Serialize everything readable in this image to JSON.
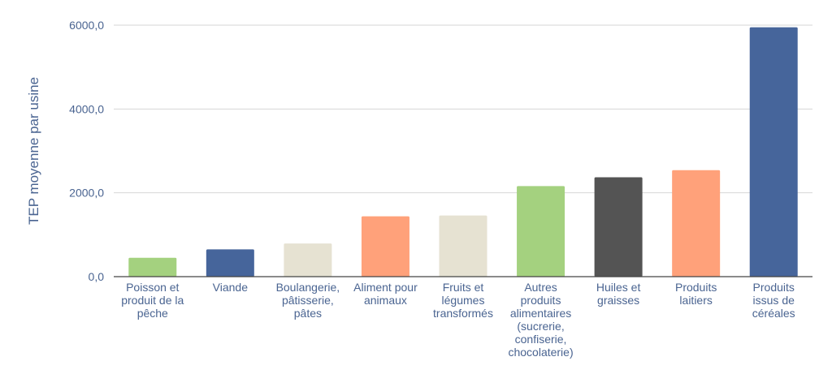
{
  "chart_data": {
    "type": "bar",
    "ylabel": "TEP moyenne par usine",
    "xlabel": "",
    "ylim": [
      0,
      6000
    ],
    "yticks": [
      "0,0",
      "2000,0",
      "4000,0",
      "6000,0"
    ],
    "grid": true,
    "categories": [
      [
        "Poisson et",
        "produit de la",
        "pêche"
      ],
      [
        "Viande"
      ],
      [
        "Boulangerie,",
        "pâtisserie,",
        "pâtes"
      ],
      [
        "Aliment pour",
        "animaux"
      ],
      [
        "Fruits et",
        "légumes",
        "transformés"
      ],
      [
        "Autres",
        "produits",
        "alimentaires",
        "(sucrerie,",
        "confiserie,",
        "chocolaterie)"
      ],
      [
        "Huiles et",
        "graisses"
      ],
      [
        "Produits",
        "laitiers"
      ],
      [
        "Produits",
        "issus de",
        "céréales"
      ]
    ],
    "values": [
      450,
      650,
      790,
      1440,
      1460,
      2160,
      2370,
      2540,
      5950
    ],
    "colors": [
      "#a4d17f",
      "#46659b",
      "#e6e2d2",
      "#ffa17a",
      "#e6e2d2",
      "#a4d17f",
      "#545454",
      "#ffa17a",
      "#46659b"
    ]
  }
}
